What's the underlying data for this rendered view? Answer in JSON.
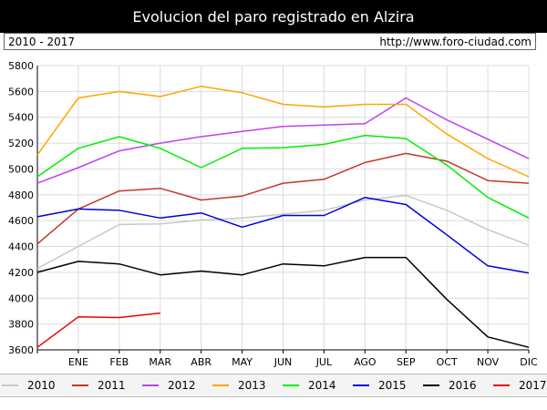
{
  "header": {
    "title": "Evolucion del paro registrado en Alzira",
    "range": "2010 - 2017",
    "url": "http://www.foro-ciudad.com"
  },
  "chart_data": {
    "type": "line",
    "title": "Evolucion del paro registrado en Alzira",
    "xlabel": "",
    "ylabel": "",
    "categories": [
      "",
      "ENE",
      "FEB",
      "MAR",
      "ABR",
      "MAY",
      "JUN",
      "JUL",
      "AGO",
      "SEP",
      "OCT",
      "NOV",
      "DIC"
    ],
    "yticks": [
      3600,
      3800,
      4000,
      4200,
      4400,
      4600,
      4800,
      5000,
      5200,
      5400,
      5600,
      5800
    ],
    "ylim": [
      3600,
      5800
    ],
    "grid": true,
    "legend_position": "bottom",
    "series": [
      {
        "name": "2010",
        "color": "#c8c8c8",
        "values": [
          4230,
          4400,
          4570,
          4575,
          4605,
          4620,
          4650,
          4680,
          4760,
          4795,
          4680,
          4530,
          4410
        ]
      },
      {
        "name": "2011",
        "color": "#c0392b",
        "values": [
          4420,
          4690,
          4830,
          4850,
          4760,
          4790,
          4890,
          4920,
          5050,
          5120,
          5060,
          4910,
          4890
        ]
      },
      {
        "name": "2012",
        "color": "#bf40ef",
        "values": [
          4890,
          5010,
          5140,
          5200,
          5250,
          5290,
          5330,
          5340,
          5350,
          5550,
          5380,
          5230,
          5080
        ]
      },
      {
        "name": "2013",
        "color": "#ffa500",
        "values": [
          5110,
          5550,
          5600,
          5560,
          5640,
          5590,
          5500,
          5480,
          5500,
          5500,
          5270,
          5080,
          4940
        ]
      },
      {
        "name": "2014",
        "color": "#00ee00",
        "values": [
          4940,
          5160,
          5250,
          5160,
          5010,
          5160,
          5165,
          5190,
          5260,
          5235,
          5030,
          4780,
          4620
        ]
      },
      {
        "name": "2015",
        "color": "#0000dd",
        "values": [
          4630,
          4690,
          4680,
          4620,
          4660,
          4550,
          4640,
          4640,
          4780,
          4725,
          4490,
          4250,
          4195
        ]
      },
      {
        "name": "2016",
        "color": "#000000",
        "values": [
          4200,
          4285,
          4265,
          4180,
          4210,
          4180,
          4265,
          4250,
          4315,
          4315,
          3990,
          3700,
          3620
        ]
      },
      {
        "name": "2017",
        "color": "#ee0000",
        "values": [
          3620,
          3855,
          3850,
          3885,
          null,
          null,
          null,
          null,
          null,
          null,
          null,
          null,
          null
        ]
      }
    ]
  }
}
